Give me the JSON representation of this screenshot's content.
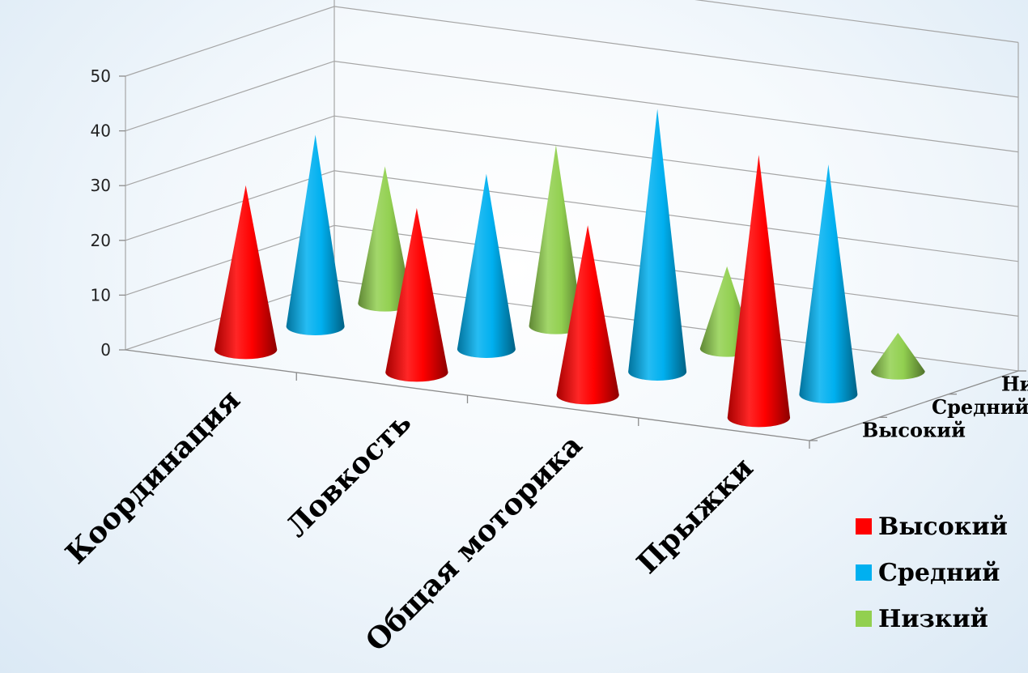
{
  "chart_data": {
    "type": "bar",
    "subtype": "3d-cone",
    "categories": [
      "Координация",
      "Ловкость",
      "Общая моторика",
      "Прыжки"
    ],
    "series": [
      {
        "name": "Высокий",
        "color": "#ff0000",
        "values": [
          30,
          30,
          31,
          48
        ]
      },
      {
        "name": "Средний",
        "color": "#00b0f0",
        "values": [
          35,
          32,
          48,
          42
        ]
      },
      {
        "name": "Низкий",
        "color": "#92d050",
        "values": [
          25,
          33,
          15,
          7
        ]
      }
    ],
    "ylim": [
      0,
      50
    ],
    "yticks": [
      "0",
      "10",
      "20",
      "30",
      "40",
      "50"
    ],
    "depth_labels": [
      "Низкий",
      "Средний",
      "Высокий"
    ],
    "grid": true,
    "legend_position": "bottom-right"
  }
}
